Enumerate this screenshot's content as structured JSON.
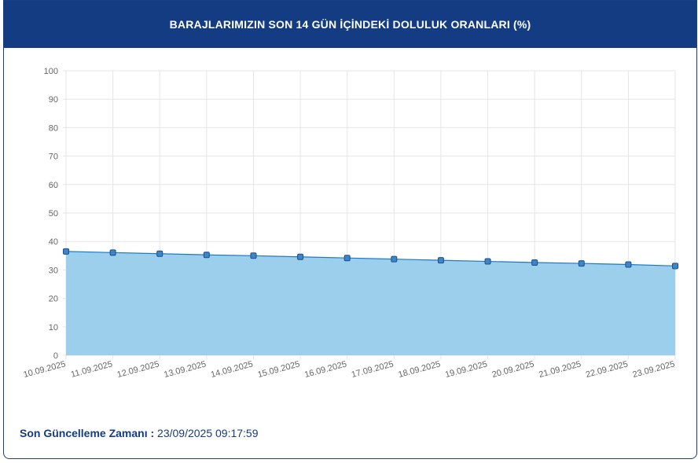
{
  "header": {
    "title": "BARAJLARIMIZIN SON 14 GÜN İÇİNDEKİ DOLULUK ORANLARI (%)"
  },
  "footer": {
    "label": "Son Güncelleme Zamanı :",
    "value": "23/09/2025 09:17:59"
  },
  "colors": {
    "header_bg": "#133c83",
    "area_fill": "#9bcfec",
    "line": "#1f77c6",
    "marker": "#3d85c6",
    "grid": "#e5e5e5"
  },
  "chart_data": {
    "type": "area",
    "title": "BARAJLARIMIZIN SON 14 GÜN İÇİNDEKİ DOLULUK ORANLARI (%)",
    "categories": [
      "10.09.2025",
      "11.09.2025",
      "12.09.2025",
      "13.09.2025",
      "14.09.2025",
      "15.09.2025",
      "16.09.2025",
      "17.09.2025",
      "18.09.2025",
      "19.09.2025",
      "20.09.2025",
      "21.09.2025",
      "22.09.2025",
      "23.09.2025"
    ],
    "series": [
      {
        "values": [
          36.5,
          36.1,
          35.7,
          35.3,
          35.0,
          34.6,
          34.2,
          33.8,
          33.4,
          33.0,
          32.6,
          32.3,
          31.9,
          31.4
        ]
      }
    ],
    "yticks": [
      0,
      10,
      20,
      30,
      40,
      50,
      60,
      70,
      80,
      90,
      100
    ],
    "ylim": [
      0,
      100
    ],
    "grid": true,
    "legend": "none"
  }
}
